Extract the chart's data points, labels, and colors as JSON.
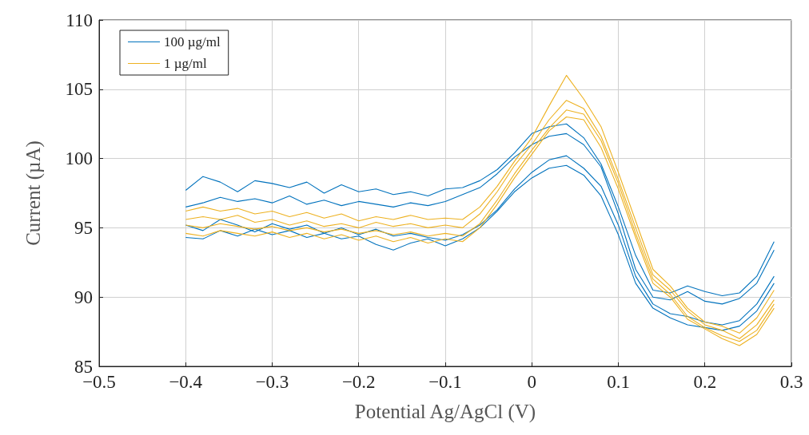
{
  "chart_data": {
    "type": "line",
    "xlabel": "Potential Ag/AgCl (V)",
    "ylabel": "Current (µA)",
    "x": [
      -0.4,
      -0.38,
      -0.36,
      -0.34,
      -0.32,
      -0.3,
      -0.28,
      -0.26,
      -0.24,
      -0.22,
      -0.2,
      -0.18,
      -0.16,
      -0.14,
      -0.12,
      -0.1,
      -0.08,
      -0.06,
      -0.04,
      -0.02,
      0,
      0.02,
      0.04,
      0.06,
      0.08,
      0.1,
      0.12,
      0.14,
      0.16,
      0.18,
      0.2,
      0.22,
      0.24,
      0.26,
      0.28
    ],
    "series": [
      {
        "name": "100 µg/ml",
        "color": "#0072bd",
        "values": [
          97.7,
          98.7,
          98.3,
          97.6,
          98.4,
          98.2,
          97.9,
          98.3,
          97.5,
          98.1,
          97.6,
          97.8,
          97.4,
          97.6,
          97.3,
          97.8,
          97.9,
          98.4,
          99.2,
          100.4,
          101.8,
          102.3,
          102.5,
          101.5,
          99.6,
          96.5,
          93.0,
          90.5,
          90.3,
          90.8,
          90.4,
          90.1,
          90.3,
          91.5,
          94.0
        ]
      },
      {
        "color": "#0072bd",
        "values": [
          96.5,
          96.8,
          97.2,
          96.9,
          97.1,
          96.8,
          97.3,
          96.7,
          97.0,
          96.6,
          96.9,
          96.7,
          96.5,
          96.8,
          96.6,
          96.9,
          97.4,
          97.9,
          98.9,
          100.1,
          101.0,
          101.6,
          101.8,
          101.0,
          99.4,
          96.0,
          92.0,
          90.0,
          89.8,
          90.4,
          89.7,
          89.5,
          89.9,
          91.0,
          93.4
        ]
      },
      {
        "color": "#0072bd",
        "values": [
          95.2,
          94.8,
          95.6,
          95.2,
          94.7,
          95.3,
          94.9,
          95.2,
          94.6,
          95.0,
          94.5,
          94.9,
          94.4,
          94.6,
          94.3,
          94.1,
          94.5,
          95.2,
          96.3,
          97.8,
          99.0,
          99.9,
          100.2,
          99.3,
          98.0,
          95.2,
          91.5,
          89.5,
          88.8,
          88.6,
          88.2,
          88.0,
          88.3,
          89.5,
          91.5
        ]
      },
      {
        "color": "#0072bd",
        "values": [
          94.3,
          94.2,
          94.8,
          94.4,
          94.9,
          94.5,
          94.8,
          94.3,
          94.6,
          94.2,
          94.4,
          93.8,
          93.4,
          93.9,
          94.2,
          93.7,
          94.2,
          95.0,
          96.2,
          97.6,
          98.6,
          99.3,
          99.5,
          98.8,
          97.3,
          94.5,
          91.0,
          89.2,
          88.5,
          88.0,
          87.8,
          87.6,
          87.9,
          89.0,
          91.0
        ]
      },
      {
        "name": "1 µg/ml",
        "color": "#edb120",
        "values": [
          96.2,
          96.5,
          96.2,
          96.4,
          96.0,
          96.2,
          95.8,
          96.1,
          95.7,
          96.0,
          95.5,
          95.8,
          95.6,
          95.9,
          95.6,
          95.7,
          95.6,
          96.5,
          98.0,
          99.8,
          101.5,
          103.8,
          106.0,
          104.3,
          102.3,
          99.0,
          95.5,
          92.0,
          90.8,
          89.2,
          88.2,
          87.9,
          87.4,
          88.5,
          90.5
        ]
      },
      {
        "color": "#edb120",
        "values": [
          95.6,
          95.8,
          95.6,
          95.9,
          95.4,
          95.6,
          95.2,
          95.5,
          95.1,
          95.3,
          95.0,
          95.4,
          95.1,
          95.3,
          95.0,
          95.2,
          95.0,
          96.0,
          97.6,
          99.5,
          101.0,
          102.8,
          104.2,
          103.6,
          101.6,
          98.5,
          95.0,
          91.6,
          90.5,
          89.0,
          88.0,
          87.6,
          87.0,
          88.0,
          89.8
        ]
      },
      {
        "color": "#edb120",
        "values": [
          95.2,
          95.0,
          95.3,
          95.1,
          94.9,
          95.1,
          94.8,
          95.0,
          94.7,
          94.9,
          94.6,
          94.8,
          94.5,
          94.7,
          94.4,
          94.6,
          94.4,
          95.3,
          97.0,
          98.9,
          100.6,
          102.2,
          103.5,
          103.2,
          101.3,
          98.2,
          94.6,
          91.3,
          90.2,
          88.6,
          87.8,
          87.2,
          86.8,
          87.6,
          89.5
        ]
      },
      {
        "color": "#edb120",
        "values": [
          94.6,
          94.4,
          94.8,
          94.6,
          94.4,
          94.7,
          94.3,
          94.6,
          94.2,
          94.5,
          94.1,
          94.4,
          94.0,
          94.3,
          93.9,
          94.2,
          94.0,
          95.0,
          96.7,
          98.6,
          100.3,
          102.0,
          103.0,
          102.8,
          100.8,
          97.8,
          94.3,
          91.0,
          90.0,
          88.4,
          87.7,
          87.0,
          86.5,
          87.3,
          89.2
        ]
      }
    ],
    "xlim": [
      -0.5,
      0.3
    ],
    "xticks": [
      {
        "value": -0.5,
        "label": "−0.5"
      },
      {
        "value": -0.4,
        "label": "−0.4"
      },
      {
        "value": -0.3,
        "label": "−0.3"
      },
      {
        "value": -0.2,
        "label": "−0.2"
      },
      {
        "value": -0.1,
        "label": "−0.1"
      },
      0,
      0.1,
      0.2,
      0.3
    ],
    "ylim": [
      85,
      110
    ],
    "yticks": [
      85,
      90,
      95,
      100,
      105,
      110
    ],
    "grid": true,
    "legend": "top left",
    "marker": "none",
    "line_style": "solid"
  }
}
